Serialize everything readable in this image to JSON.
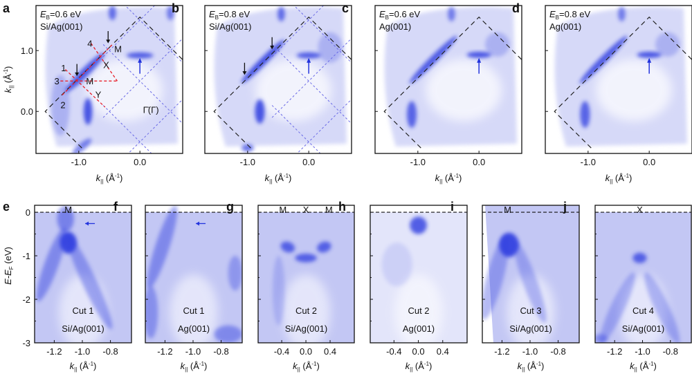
{
  "axis_text": {
    "k_symbol": "k",
    "k_sub": "||",
    "k_unit_open": " (Å",
    "k_unit_sup": "-1",
    "k_unit_close": ")",
    "e_label": "E-E",
    "e_sub": "F",
    "e_unit": " (eV)",
    "eb_symbol": "E",
    "eb_sub": "B"
  },
  "colors": {
    "intensity": "#2e3ee0",
    "cut_lines": "#e8202a",
    "bz_lines": "#6a6ae6",
    "arrow_blue": "#2233dd"
  },
  "chart_data": [
    {
      "panel": "a",
      "type": "heatmap",
      "eb_value": "=0.6 eV",
      "sample": "Si/Ag(001)",
      "xlim": [
        -1.7,
        0.7
      ],
      "ylim": [
        -0.69,
        1.74
      ],
      "xticks": [
        "-1.0",
        "0.0"
      ],
      "xtick_values": [
        -1.0,
        0.0
      ],
      "yticks": [
        "0.0",
        "1.0"
      ],
      "ytick_values": [
        0.0,
        1.0
      ],
      "points": [
        {
          "label": "M",
          "x": -0.42,
          "y": 1.03
        },
        {
          "label": "X",
          "x": -0.6,
          "y": 0.77
        },
        {
          "label": "M",
          "x": -0.88,
          "y": 0.5
        },
        {
          "label": "Y",
          "x": -0.73,
          "y": 0.28
        },
        {
          "label": "Γ̄(Γ)",
          "x": 0.05,
          "y": 0.03
        }
      ],
      "cuts": [
        {
          "label": "1",
          "x": -1.29,
          "y": 0.72
        },
        {
          "label": "2",
          "x": -1.3,
          "y": 0.11
        },
        {
          "label": "3",
          "x": -1.4,
          "y": 0.5
        },
        {
          "label": "4",
          "x": -0.86,
          "y": 1.12
        }
      ]
    },
    {
      "panel": "b",
      "type": "heatmap",
      "eb_value": "=0.8 eV",
      "sample": "Si/Ag(001)",
      "xlim": [
        -1.7,
        0.7
      ],
      "ylim": [
        -0.69,
        1.74
      ],
      "xticks": [
        "-1.0",
        "0.0"
      ],
      "xtick_values": [
        -1.0,
        0.0
      ]
    },
    {
      "panel": "c",
      "type": "heatmap",
      "eb_value": "=0.6 eV",
      "sample": "Ag(001)",
      "xlim": [
        -1.7,
        0.7
      ],
      "ylim": [
        -0.69,
        1.74
      ],
      "xticks": [
        "-1.0",
        "0.0"
      ],
      "xtick_values": [
        -1.0,
        0.0
      ]
    },
    {
      "panel": "d",
      "type": "heatmap",
      "eb_value": "=0.8 eV",
      "sample": "Ag(001)",
      "xlim": [
        -1.7,
        0.7
      ],
      "ylim": [
        -0.69,
        1.74
      ],
      "xticks": [
        "-1.0",
        "0.0"
      ],
      "xtick_values": [
        -1.0,
        0.0
      ]
    },
    {
      "panel": "e",
      "type": "heatmap",
      "cut": "Cut 1",
      "sample": "Si/Ag(001)",
      "top_labels": [
        {
          "label": "M",
          "x": -1.1
        }
      ],
      "xlim": [
        -1.34,
        -0.65
      ],
      "ylim": [
        -3,
        0.16
      ],
      "xticks": [
        "-1.2",
        "-1.0",
        "-0.8"
      ],
      "xtick_values": [
        -1.2,
        -1.0,
        -0.8
      ],
      "yticks": [
        "0",
        "-1",
        "-2",
        "-3"
      ],
      "ytick_values": [
        0,
        -1,
        -2,
        -3
      ]
    },
    {
      "panel": "f",
      "type": "heatmap",
      "cut": "Cut 1",
      "sample": "Ag(001)",
      "xlim": [
        -1.34,
        -0.65
      ],
      "ylim": [
        -3,
        0.16
      ],
      "xticks": [
        "-1.2",
        "-1.0",
        "-0.8"
      ],
      "xtick_values": [
        -1.2,
        -1.0,
        -0.8
      ]
    },
    {
      "panel": "g",
      "type": "heatmap",
      "cut": "Cut 2",
      "sample": "Si/Ag(001)",
      "top_labels": [
        {
          "label": "M",
          "x": -0.38
        },
        {
          "label": "X",
          "x": 0.0
        },
        {
          "label": "M",
          "x": 0.38
        }
      ],
      "xlim": [
        -0.79,
        0.8
      ],
      "ylim": [
        -3,
        0.16
      ],
      "xticks": [
        "-0.4",
        "0.0",
        "0.4"
      ],
      "xtick_values": [
        -0.4,
        0.0,
        0.4
      ]
    },
    {
      "panel": "h",
      "type": "heatmap",
      "cut": "Cut 2",
      "sample": "Ag(001)",
      "xlim": [
        -0.79,
        0.8
      ],
      "ylim": [
        -3,
        0.16
      ],
      "xticks": [
        "-0.4",
        "0.0",
        "0.4"
      ],
      "xtick_values": [
        -0.4,
        0.0,
        0.4
      ]
    },
    {
      "panel": "i",
      "type": "heatmap",
      "cut": "Cut 3",
      "sample": "Si/Ag(001)",
      "top_labels": [
        {
          "label": "M",
          "x": -1.16
        }
      ],
      "xlim": [
        -1.34,
        -0.65
      ],
      "ylim": [
        -3,
        0.16
      ],
      "xticks": [
        "-1.2",
        "-1.0",
        "-0.8"
      ],
      "xtick_values": [
        -1.2,
        -1.0,
        -0.8
      ]
    },
    {
      "panel": "j",
      "type": "heatmap",
      "cut": "Cut 4",
      "sample": "Si/Ag(001)",
      "top_labels": [
        {
          "label": "X",
          "x": -1.02
        }
      ],
      "xlim": [
        -1.34,
        -0.65
      ],
      "ylim": [
        -3,
        0.16
      ],
      "xticks": [
        "-1.2",
        "-1.0",
        "-0.8"
      ],
      "xtick_values": [
        -1.2,
        -1.0,
        -0.8
      ]
    }
  ]
}
